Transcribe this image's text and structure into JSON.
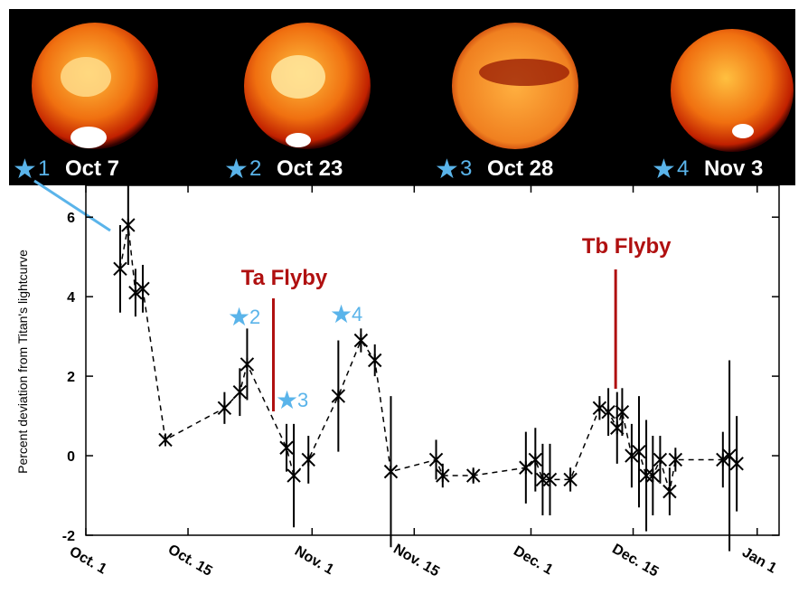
{
  "images": [
    {
      "number": "1",
      "date": "Oct 7"
    },
    {
      "number": "2",
      "date": "Oct 23"
    },
    {
      "number": "3",
      "date": "Oct 28"
    },
    {
      "number": "4",
      "date": "Nov 3"
    }
  ],
  "chart_data": {
    "type": "scatter",
    "ylabel": "Percent deviation from Titan's lightcurve",
    "x": [
      4.7,
      5.8,
      6.8,
      7.8,
      10.9,
      19,
      21.1,
      22.1,
      27.5,
      28.5,
      30.5,
      34.6,
      37.7,
      39.6,
      41.8,
      48,
      48.9,
      53.1,
      60.3,
      61.6,
      62.6,
      63.6,
      66.4,
      70.4,
      71.6,
      72.8,
      73.5,
      74.8,
      75.8,
      76.8,
      77.7,
      78.7,
      80,
      80.8,
      87.3,
      88.2,
      89.2
    ],
    "values": [
      4.7,
      5.8,
      4.1,
      4.2,
      0.4,
      1.2,
      1.6,
      2.3,
      0.2,
      -0.5,
      -0.1,
      1.5,
      2.9,
      2.4,
      -0.4,
      -0.1,
      -0.5,
      -0.5,
      -0.3,
      -0.1,
      -0.6,
      -0.6,
      -0.6,
      1.2,
      1.1,
      0.7,
      1.1,
      0,
      0.1,
      -0.5,
      -0.5,
      -0.1,
      -0.9,
      -0.1,
      -0.1,
      0,
      -0.2
    ],
    "errors": [
      1.1,
      1,
      0.6,
      0.6,
      0.1,
      0.4,
      0.6,
      0.9,
      0.6,
      1.3,
      0.6,
      1.4,
      0.3,
      0.4,
      1.9,
      0.5,
      0.3,
      0.2,
      0.9,
      0.8,
      0.9,
      0.9,
      0.3,
      0.3,
      0.6,
      0.9,
      0.6,
      0.8,
      1.4,
      1.4,
      1,
      0.6,
      0.6,
      0.3,
      0.7,
      2.4,
      1.2
    ],
    "xlim": [
      0,
      95
    ],
    "xticks": [
      {
        "value": 0,
        "label": "Oct. 1"
      },
      {
        "value": 14,
        "label": "Oct. 15"
      },
      {
        "value": 31,
        "label": "Nov. 1"
      },
      {
        "value": 45,
        "label": "Nov. 15"
      },
      {
        "value": 61,
        "label": "Dec. 1"
      },
      {
        "value": 75,
        "label": "Dec. 15"
      },
      {
        "value": 92,
        "label": "Jan 1"
      }
    ],
    "ylim": [
      -2,
      6.8
    ],
    "yticks": [
      -2,
      0,
      2,
      4,
      6
    ],
    "flybys": [
      {
        "label": "Ta Flyby",
        "x": 25.7
      },
      {
        "label": "Tb Flyby",
        "x": 72.6
      }
    ],
    "markers": [
      {
        "label": "2"
      },
      {
        "label": "3"
      },
      {
        "label": "4"
      }
    ]
  }
}
